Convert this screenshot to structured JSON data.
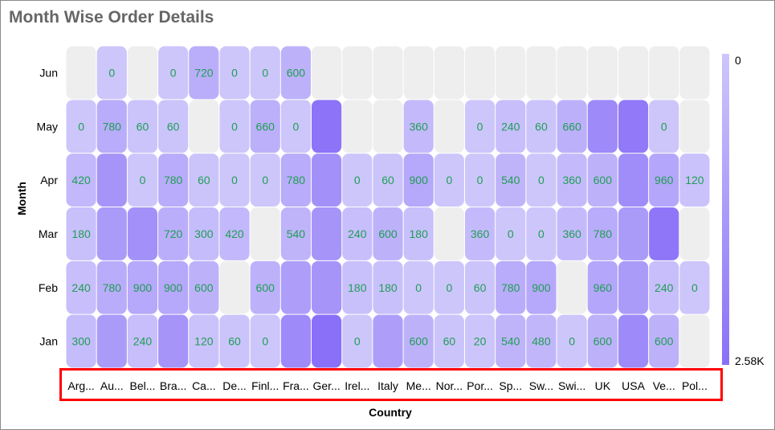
{
  "chart_data": {
    "type": "heatmap",
    "title": "Month Wise Order Details",
    "xlabel": "Country",
    "ylabel": "Month",
    "x_categories": [
      "Arg...",
      "Au...",
      "Bel...",
      "Bra...",
      "Ca...",
      "De...",
      "Finl...",
      "Fra...",
      "Ger...",
      "Irel...",
      "Italy",
      "Me...",
      "Nor...",
      "Por...",
      "Sp...",
      "Sw...",
      "Swi...",
      "UK",
      "USA",
      "Ve...",
      "Pol..."
    ],
    "y_categories": [
      "Jun",
      "May",
      "Apr",
      "Mar",
      "Feb",
      "Jan"
    ],
    "values": [
      [
        null,
        0,
        null,
        0,
        720,
        0,
        0,
        600,
        null,
        null,
        null,
        null,
        null,
        null,
        null,
        null,
        null,
        null,
        null,
        null,
        null
      ],
      [
        0,
        780,
        60,
        60,
        null,
        0,
        660,
        0,
        2500,
        null,
        null,
        360,
        null,
        0,
        240,
        60,
        660,
        1800,
        2300,
        0,
        null
      ],
      [
        420,
        1500,
        0,
        780,
        60,
        0,
        0,
        780,
        1600,
        0,
        60,
        900,
        0,
        0,
        540,
        0,
        360,
        600,
        1700,
        960,
        120
      ],
      [
        180,
        1300,
        1600,
        720,
        300,
        420,
        null,
        540,
        1500,
        240,
        600,
        180,
        null,
        360,
        0,
        0,
        360,
        780,
        1300,
        2400,
        null
      ],
      [
        240,
        780,
        900,
        900,
        600,
        null,
        600,
        1200,
        1500,
        180,
        180,
        0,
        0,
        60,
        780,
        900,
        null,
        960,
        1300,
        240,
        0
      ],
      [
        300,
        1300,
        240,
        1500,
        120,
        60,
        0,
        1800,
        2580,
        0,
        1200,
        600,
        60,
        20,
        540,
        480,
        0,
        600,
        1800,
        600,
        null
      ]
    ],
    "color_scale": {
      "min": 0,
      "max": 2580,
      "min_label": "0",
      "max_label": "2.58K",
      "min_color": "#cdc6fb",
      "max_color": "#8a70f8",
      "empty_color": "#eeeeee"
    },
    "label_color": "#1e9e55",
    "legend_position": "right"
  }
}
